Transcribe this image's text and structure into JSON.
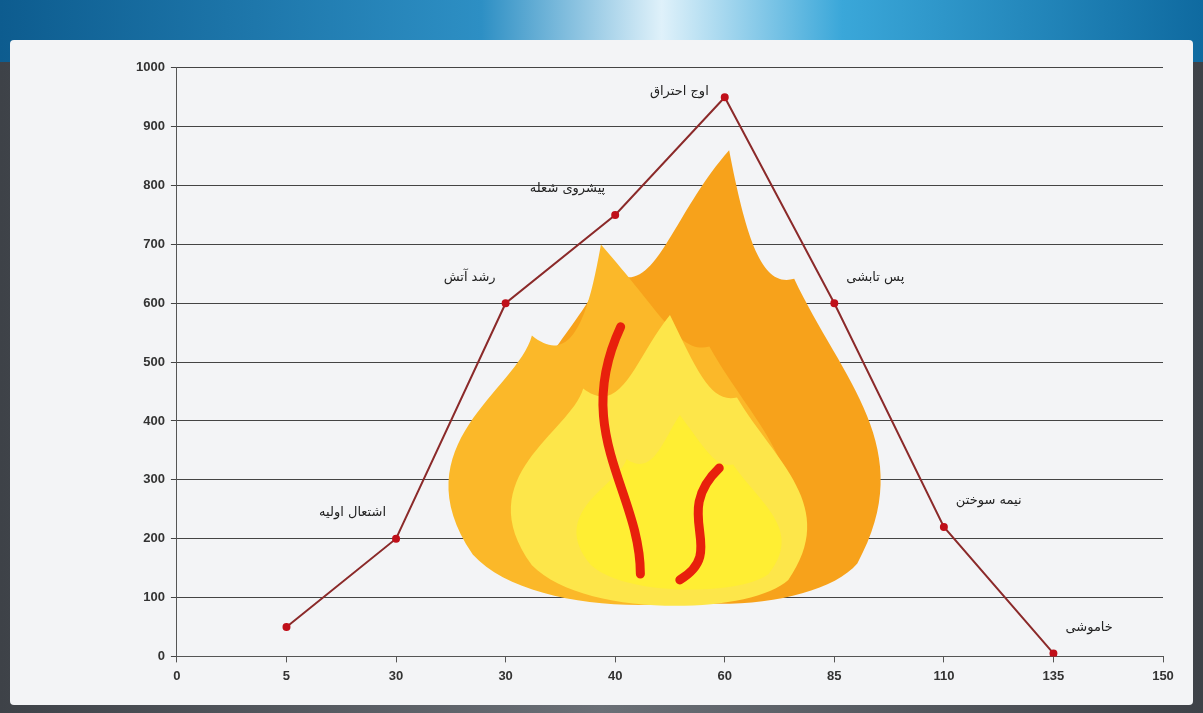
{
  "chart_data": {
    "type": "line",
    "categories": [
      "0",
      "5",
      "30",
      "30",
      "40",
      "60",
      "85",
      "110",
      "135",
      "150"
    ],
    "values": [
      null,
      50,
      200,
      600,
      750,
      950,
      600,
      220,
      5,
      null
    ],
    "annotations": [
      null,
      null,
      "اشتعال اولیه",
      "رشد آتش",
      "پیشروی شعله",
      "اوج احتراق",
      "پس تابشی",
      "نیمه سوختن",
      "خاموشی",
      null
    ],
    "color": "#8b2a2a",
    "marker": "circle",
    "ylim": [
      0,
      1000
    ],
    "yticks": [
      0,
      100,
      200,
      300,
      400,
      500,
      600,
      700,
      800,
      900,
      1000
    ],
    "grid": true
  }
}
